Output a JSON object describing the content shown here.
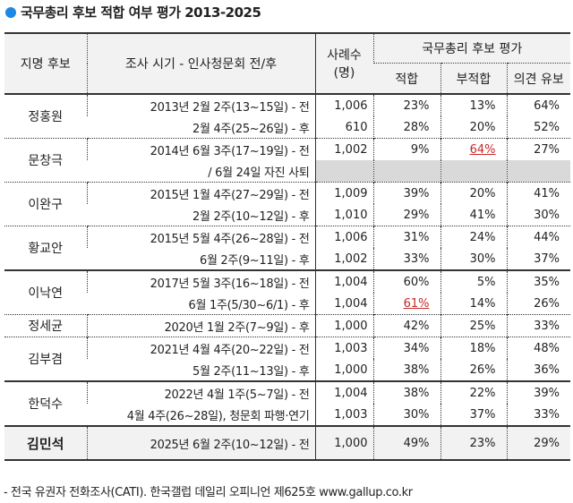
{
  "title": "국무총리 후보 적합 여부 평가 2013-2025",
  "headers": {
    "candidate": "지명 후보",
    "period": "조사 시기 - 인사청문회 전/후",
    "sample": "사례수",
    "sample_unit": "(명)",
    "eval": "국무총리 후보 평가",
    "fit": "적합",
    "unfit": "부적합",
    "reserved": "의견 유보"
  },
  "groups": [
    {
      "name": "정홍원",
      "rows": [
        {
          "period": "2013년 2월 2주(13~15일) - 전",
          "n": "1,006",
          "fit": "23%",
          "unfit": "13%",
          "res": "64%"
        },
        {
          "period": "2월 4주(25~26일) - 후",
          "n": "610",
          "fit": "28%",
          "unfit": "20%",
          "res": "52%"
        }
      ]
    },
    {
      "name": "문창극",
      "rows": [
        {
          "period": "2014년 6월 3주(17~19일) - 전",
          "n": "1,002",
          "fit": "9%",
          "unfit": "64%",
          "res": "27%",
          "hl": "unfit"
        },
        {
          "period": "/ 6월 24일 자진 사퇴",
          "gray": true
        }
      ]
    },
    {
      "name": "이완구",
      "rows": [
        {
          "period": "2015년 1월 4주(27~29일) - 전",
          "n": "1,009",
          "fit": "39%",
          "unfit": "20%",
          "res": "41%"
        },
        {
          "period": "2월 2주(10~12일) - 후",
          "n": "1,010",
          "fit": "29%",
          "unfit": "41%",
          "res": "30%"
        }
      ]
    },
    {
      "name": "황교안",
      "rows": [
        {
          "period": "2015년 5월 4주(26~28일) - 전",
          "n": "1,006",
          "fit": "31%",
          "unfit": "24%",
          "res": "44%"
        },
        {
          "period": "6월 2주(9~11일) - 후",
          "n": "1,002",
          "fit": "33%",
          "unfit": "30%",
          "res": "37%"
        }
      ]
    },
    {
      "name": "이낙연",
      "solid": true,
      "rows": [
        {
          "period": "2017년 5월 3주(16~18일) - 전",
          "n": "1,004",
          "fit": "60%",
          "unfit": "5%",
          "res": "35%"
        },
        {
          "period": "6월 1주(5/30~6/1) - 후",
          "n": "1,004",
          "fit": "61%",
          "unfit": "14%",
          "res": "26%",
          "hl": "fit"
        }
      ]
    },
    {
      "name": "정세균",
      "rows": [
        {
          "period": "2020년 1월 2주(7~9일) - 후",
          "n": "1,000",
          "fit": "42%",
          "unfit": "25%",
          "res": "33%"
        }
      ]
    },
    {
      "name": "김부겸",
      "rows": [
        {
          "period": "2021년 4월 4주(20~22일) - 전",
          "n": "1,003",
          "fit": "34%",
          "unfit": "18%",
          "res": "48%"
        },
        {
          "period": "5월 2주(11~13일) - 후",
          "n": "1,000",
          "fit": "38%",
          "unfit": "26%",
          "res": "36%"
        }
      ]
    },
    {
      "name": "한덕수",
      "solid": true,
      "rows": [
        {
          "period": "2022년 4월 1주(5~7일) - 전",
          "n": "1,004",
          "fit": "38%",
          "unfit": "22%",
          "res": "39%"
        },
        {
          "period": "4월 4주(26~28일), 청문회 파행·연기",
          "n": "1,003",
          "fit": "30%",
          "unfit": "37%",
          "res": "33%"
        }
      ]
    },
    {
      "name": "김민석",
      "final": true,
      "rows": [
        {
          "period": "2025년 6월 2주(10~12일) - 전",
          "n": "1,000",
          "fit": "49%",
          "unfit": "23%",
          "res": "29%"
        }
      ]
    }
  ],
  "footer": "- 전국 유권자 전화조사(CATI). 한국갤럽 데일리 오피니언 제625호 www.gallup.co.kr"
}
